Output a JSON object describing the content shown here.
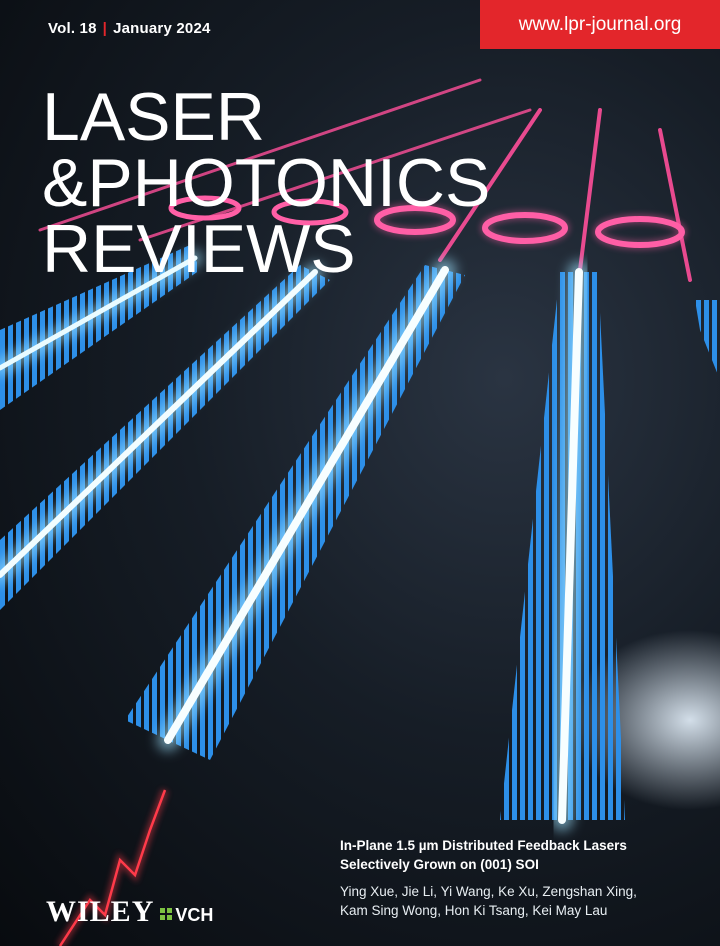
{
  "issue": {
    "volume": "Vol. 18",
    "separator": "|",
    "date": "January 2024"
  },
  "url": "www.lpr-journal.org",
  "title": {
    "line1": "LASER",
    "line2": "&PHOTONICS",
    "line3": "REVIEWS"
  },
  "article": {
    "title_line1": "In-Plane 1.5 µm Distributed Feedback Lasers",
    "title_line2": "Selectively Grown on (001) SOI",
    "authors_line1": "Ying Xue, Jie Li, Yi Wang, Ke Xu, Zengshan Xing,",
    "authors_line2": "Kam Sing Wong, Hon Ki Tsang, Kei May Lau"
  },
  "publisher": {
    "name": "WILEY",
    "imprint": "VCH"
  },
  "colors": {
    "accent_red": "#e3262b",
    "grating_blue": "#2a8fe6",
    "glow_cyan": "#bfefff",
    "glow_pink": "#ff4f9a",
    "vch_green": "#7cc242"
  }
}
